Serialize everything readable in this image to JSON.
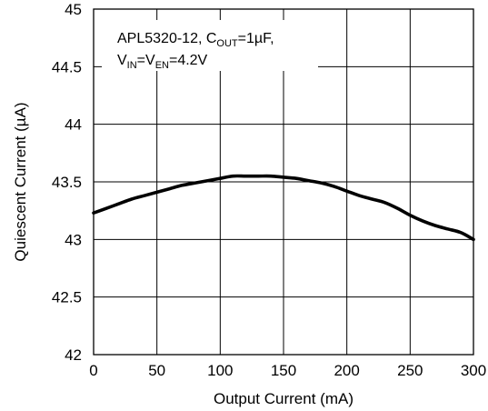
{
  "chart_data": {
    "type": "line",
    "xlabel": "Output Current (mA)",
    "ylabel": "Quiescent Current (µA)",
    "xlim": [
      0,
      300
    ],
    "ylim": [
      42,
      45
    ],
    "x_ticks": [
      "0",
      "50",
      "100",
      "150",
      "200",
      "250",
      "300"
    ],
    "y_ticks": [
      "42",
      "42.5",
      "43",
      "43.5",
      "44",
      "44.5",
      "45"
    ],
    "grid": true,
    "annotation": {
      "line1_main": "APL5320-12, C",
      "line1_sub": "OUT",
      "line1_tail": "=1µF,",
      "line2_v1": "V",
      "line2_sub1": "IN",
      "line2_eq": "=V",
      "line2_sub2": "EN",
      "line2_tail": "=4.2V"
    },
    "series": [
      {
        "color": "#000000",
        "x": [
          0,
          10,
          20,
          30,
          40,
          50,
          60,
          70,
          80,
          90,
          100,
          110,
          120,
          130,
          140,
          150,
          160,
          170,
          180,
          190,
          200,
          210,
          220,
          230,
          240,
          250,
          260,
          270,
          280,
          290,
          300
        ],
        "y": [
          43.23,
          43.27,
          43.31,
          43.35,
          43.38,
          43.41,
          43.44,
          43.47,
          43.49,
          43.51,
          43.53,
          43.55,
          43.55,
          43.55,
          43.55,
          43.54,
          43.53,
          43.51,
          43.49,
          43.46,
          43.42,
          43.38,
          43.35,
          43.32,
          43.27,
          43.21,
          43.16,
          43.12,
          43.09,
          43.06,
          43.0
        ]
      }
    ]
  }
}
